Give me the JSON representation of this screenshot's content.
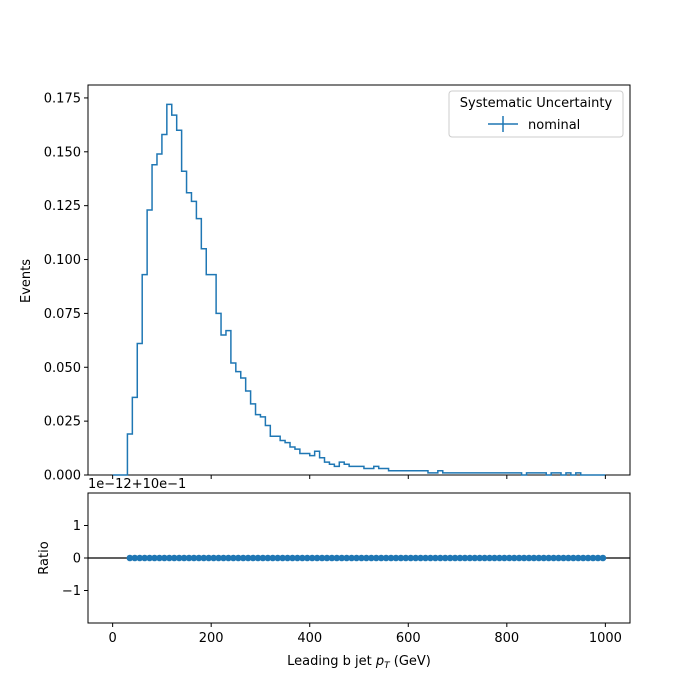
{
  "chart_data": [
    {
      "type": "line",
      "step": true,
      "ylabel": "Events",
      "xlim": [
        -50,
        1050
      ],
      "ylim": [
        0,
        0.181
      ],
      "yticks": [
        0.0,
        0.025,
        0.05,
        0.075,
        0.1,
        0.125,
        0.15,
        0.175
      ],
      "ytick_labels": [
        "0.000",
        "0.025",
        "0.050",
        "0.075",
        "0.100",
        "0.125",
        "0.150",
        "0.175"
      ],
      "legend": {
        "title": "Systematic Uncertainty",
        "placement": "top-right",
        "entries": [
          {
            "label": "nominal",
            "color": "#1f77b4"
          }
        ]
      },
      "series": [
        {
          "name": "nominal",
          "color": "#1f77b4",
          "bin_width": 10,
          "x_edges_start": 0,
          "values": [
            0.0,
            0.0,
            0.0,
            0.019,
            0.036,
            0.061,
            0.093,
            0.123,
            0.144,
            0.149,
            0.158,
            0.172,
            0.167,
            0.16,
            0.141,
            0.131,
            0.127,
            0.119,
            0.105,
            0.093,
            0.093,
            0.075,
            0.065,
            0.067,
            0.052,
            0.048,
            0.045,
            0.039,
            0.033,
            0.028,
            0.027,
            0.023,
            0.018,
            0.018,
            0.016,
            0.015,
            0.013,
            0.012,
            0.01,
            0.01,
            0.009,
            0.011,
            0.008,
            0.006,
            0.005,
            0.004,
            0.006,
            0.005,
            0.004,
            0.004,
            0.004,
            0.003,
            0.003,
            0.004,
            0.003,
            0.003,
            0.002,
            0.002,
            0.002,
            0.002,
            0.002,
            0.002,
            0.002,
            0.002,
            0.001,
            0.001,
            0.002,
            0.001,
            0.001,
            0.001,
            0.001,
            0.001,
            0.001,
            0.001,
            0.001,
            0.001,
            0.001,
            0.001,
            0.001,
            0.001,
            0.001,
            0.001,
            0.001,
            0.0,
            0.001,
            0.001,
            0.001,
            0.001,
            0.0,
            0.001,
            0.001,
            0.0,
            0.001,
            0.0,
            0.001,
            0.0,
            0.0,
            0.0,
            0.0,
            0.0
          ]
        }
      ]
    },
    {
      "type": "scatter",
      "xlabel": "Leading b jet  p_T (GeV)",
      "xlabel_parts": {
        "text": "Leading b jet  ",
        "var": "p",
        "sub": "T",
        "unit": " (GeV)"
      },
      "ylabel": "Ratio",
      "offset_text": "1e−12+10e−1",
      "xlim": [
        -50,
        1050
      ],
      "ylim": [
        -2,
        2
      ],
      "xticks": [
        0,
        200,
        400,
        600,
        800,
        1000
      ],
      "xtick_labels": [
        "0",
        "200",
        "400",
        "600",
        "800",
        "1000"
      ],
      "yticks": [
        -1,
        0,
        1
      ],
      "ytick_labels": [
        "−1",
        "0",
        "1"
      ],
      "reference_line": 0,
      "series": [
        {
          "name": "nominal",
          "color": "#1f77b4",
          "x_start": 35,
          "x_step": 10,
          "count": 97,
          "y": 0
        }
      ]
    }
  ]
}
